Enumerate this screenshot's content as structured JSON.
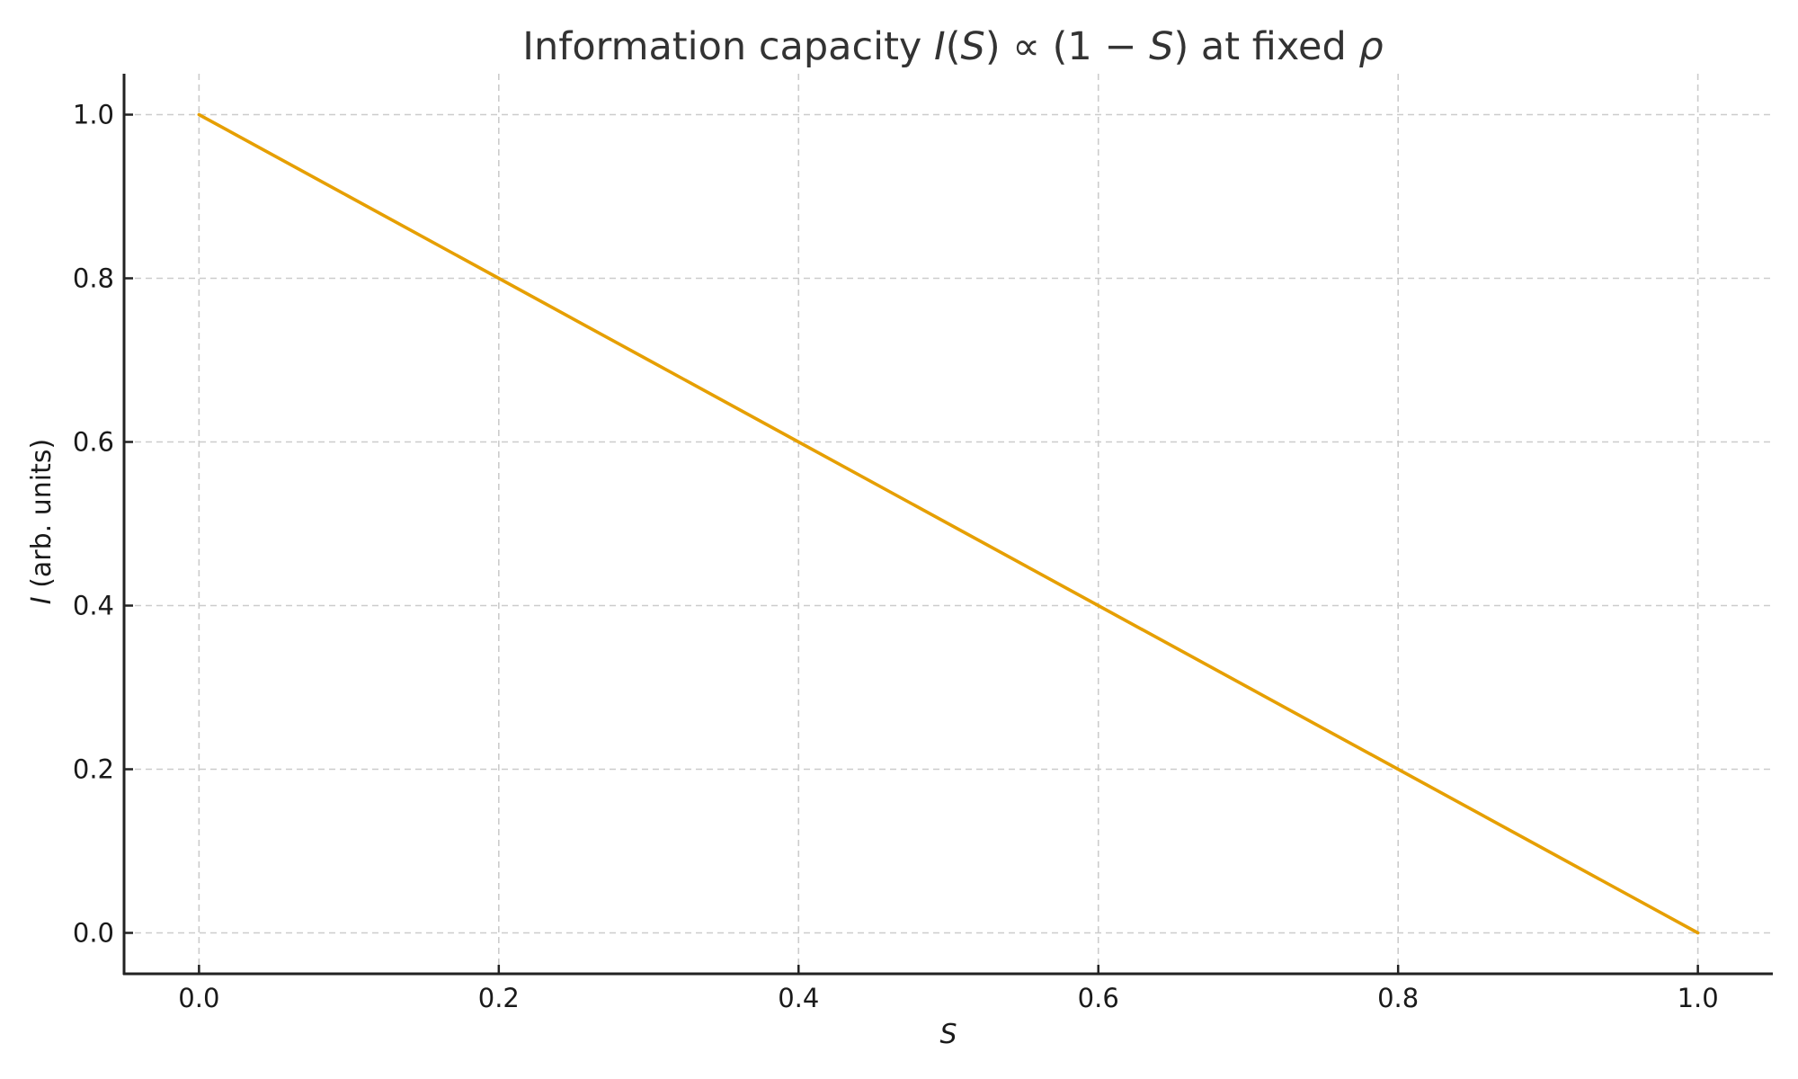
{
  "chart_data": {
    "type": "line",
    "title": "Information capacity I(S) ∝ (1 − S) at fixed ρ",
    "title_parts": {
      "prefix": "Information capacity ",
      "I": "I",
      "open_paren": "(",
      "S": "S",
      "close_paren": ")",
      "prop": " ∝ ",
      "paren_one_minus": "(1 − ",
      "S2": "S",
      "close2": ")",
      "suffix": " at fixed ",
      "rho": "ρ"
    },
    "xlabel": "S",
    "ylabel": "I (arb. units)",
    "ylabel_parts": {
      "italic": "I",
      "rest": " (arb. units)"
    },
    "xlim": [
      -0.05,
      1.05
    ],
    "ylim": [
      -0.05,
      1.05
    ],
    "xticks": [
      0.0,
      0.2,
      0.4,
      0.6,
      0.8,
      1.0
    ],
    "yticks": [
      0.0,
      0.2,
      0.4,
      0.6,
      0.8,
      1.0
    ],
    "xtick_labels": [
      "0.0",
      "0.2",
      "0.4",
      "0.6",
      "0.8",
      "1.0"
    ],
    "ytick_labels": [
      "0.0",
      "0.2",
      "0.4",
      "0.6",
      "0.8",
      "1.0"
    ],
    "grid": true,
    "legend": null,
    "series": [
      {
        "name": "I(S)",
        "color": "#E69F00",
        "x": [
          0.0,
          0.1,
          0.2,
          0.3,
          0.4,
          0.5,
          0.6,
          0.7,
          0.8,
          0.9,
          1.0
        ],
        "y": [
          1.0,
          0.9,
          0.8,
          0.7,
          0.6,
          0.5,
          0.4,
          0.3,
          0.2,
          0.1,
          0.0
        ]
      }
    ]
  },
  "colors": {
    "line": "#E69F00",
    "title": "#333333",
    "text": "#1a1a1a",
    "grid": "#cccccc",
    "spine": "#222222"
  }
}
